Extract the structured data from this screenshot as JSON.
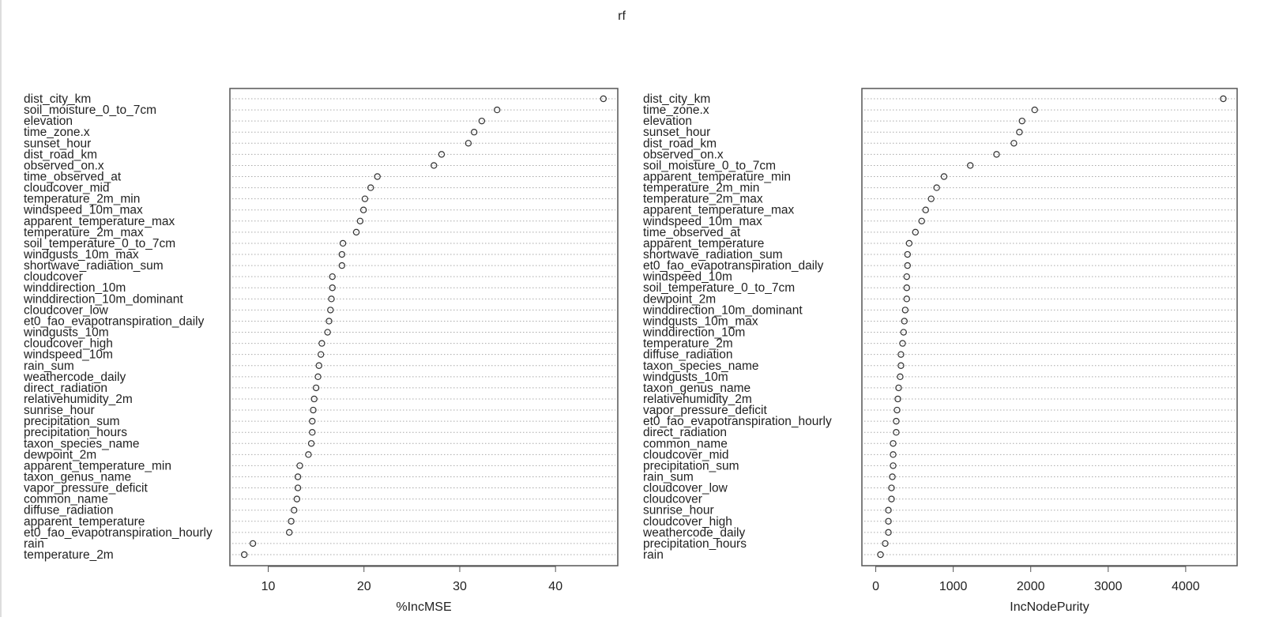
{
  "title": "rf",
  "chart_data": [
    {
      "type": "scatter",
      "style": "dotchart",
      "xlabel": "%IncMSE",
      "xlim": [
        6.0,
        46.5
      ],
      "xticks": [
        10,
        20,
        30,
        40
      ],
      "grid": "dotted horizontal",
      "categories": [
        "dist_city_km",
        "soil_moisture_0_to_7cm",
        "elevation",
        "time_zone.x",
        "sunset_hour",
        "dist_road_km",
        "observed_on.x",
        "time_observed_at",
        "cloudcover_mid",
        "temperature_2m_min",
        "windspeed_10m_max",
        "apparent_temperature_max",
        "temperature_2m_max",
        "soil_temperature_0_to_7cm",
        "windgusts_10m_max",
        "shortwave_radiation_sum",
        "cloudcover",
        "winddirection_10m",
        "winddirection_10m_dominant",
        "cloudcover_low",
        "et0_fao_evapotranspiration_daily",
        "windgusts_10m",
        "cloudcover_high",
        "windspeed_10m",
        "rain_sum",
        "weathercode_daily",
        "direct_radiation",
        "relativehumidity_2m",
        "sunrise_hour",
        "precipitation_sum",
        "precipitation_hours",
        "taxon_species_name",
        "dewpoint_2m",
        "apparent_temperature_min",
        "taxon_genus_name",
        "vapor_pressure_deficit",
        "common_name",
        "diffuse_radiation",
        "apparent_temperature",
        "et0_fao_evapotranspiration_hourly",
        "rain",
        "temperature_2m"
      ],
      "values": [
        45.0,
        33.9,
        32.3,
        31.5,
        30.9,
        28.1,
        27.3,
        21.4,
        20.7,
        20.1,
        19.95,
        19.6,
        19.2,
        17.8,
        17.7,
        17.7,
        16.7,
        16.7,
        16.6,
        16.5,
        16.35,
        16.2,
        15.6,
        15.5,
        15.3,
        15.2,
        15.0,
        14.8,
        14.7,
        14.6,
        14.6,
        14.5,
        14.2,
        13.3,
        13.1,
        13.1,
        13.0,
        12.7,
        12.4,
        12.2,
        8.4,
        7.5
      ]
    },
    {
      "type": "scatter",
      "style": "dotchart",
      "xlabel": "IncNodePurity",
      "xlim": [
        -179,
        4664
      ],
      "xticks": [
        0,
        1000,
        2000,
        3000,
        4000
      ],
      "grid": "dotted horizontal",
      "categories": [
        "dist_city_km",
        "time_zone.x",
        "elevation",
        "sunset_hour",
        "dist_road_km",
        "observed_on.x",
        "soil_moisture_0_to_7cm",
        "apparent_temperature_min",
        "temperature_2m_min",
        "temperature_2m_max",
        "apparent_temperature_max",
        "windspeed_10m_max",
        "time_observed_at",
        "apparent_temperature",
        "shortwave_radiation_sum",
        "et0_fao_evapotranspiration_daily",
        "windspeed_10m",
        "soil_temperature_0_to_7cm",
        "dewpoint_2m",
        "winddirection_10m_dominant",
        "windgusts_10m_max",
        "winddirection_10m",
        "temperature_2m",
        "diffuse_radiation",
        "taxon_species_name",
        "windgusts_10m",
        "taxon_genus_name",
        "relativehumidity_2m",
        "vapor_pressure_deficit",
        "et0_fao_evapotranspiration_hourly",
        "direct_radiation",
        "common_name",
        "cloudcover_mid",
        "precipitation_sum",
        "rain_sum",
        "cloudcover_low",
        "cloudcover",
        "sunrise_hour",
        "cloudcover_high",
        "weathercode_daily",
        "precipitation_hours",
        "rain"
      ],
      "values": [
        4485,
        2051,
        1888,
        1854,
        1783,
        1559,
        1220,
        881,
        786,
        715,
        644,
        593,
        512,
        431,
        410,
        410,
        400,
        400,
        400,
        380,
        369,
        359,
        346,
        325,
        325,
        315,
        295,
        285,
        275,
        264,
        264,
        224,
        224,
        224,
        214,
        203,
        203,
        163,
        163,
        163,
        122,
        61
      ]
    }
  ]
}
